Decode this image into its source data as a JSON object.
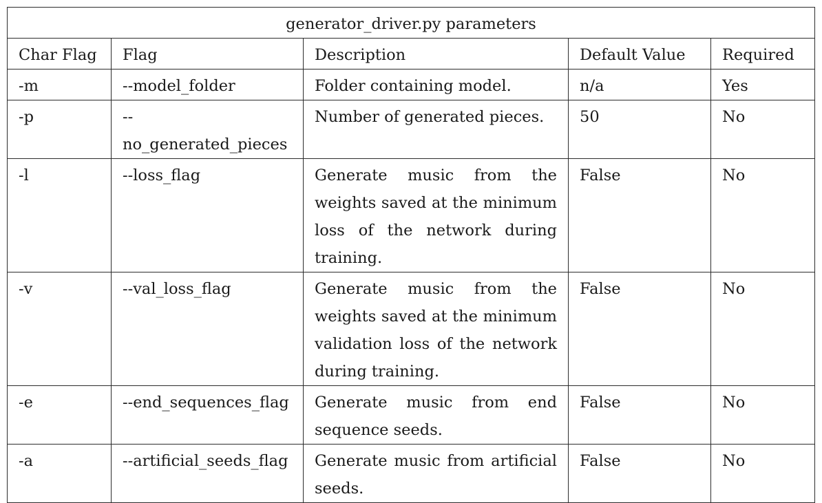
{
  "table": {
    "title": "generator_driver.py parameters",
    "headers": [
      "Char Flag",
      "Flag",
      "Description",
      "Default Value",
      "Required"
    ],
    "rows": [
      {
        "char": "-m",
        "flag": "--model_folder",
        "desc": "Folder containing model.",
        "default": "n/a",
        "required": "Yes"
      },
      {
        "char": "-p",
        "flag": "--no_generated_pieces",
        "desc": "Number of generated pieces.",
        "default": "50",
        "required": "No"
      },
      {
        "char": "-l",
        "flag": "--loss_flag",
        "desc": "Generate music from the weights saved at the minimum loss of the network during training.",
        "default": "False",
        "required": "No"
      },
      {
        "char": "-v",
        "flag": "--val_loss_flag",
        "desc": "Generate music from the weights saved at the minimum validation loss of the network during training.",
        "default": "False",
        "required": "No"
      },
      {
        "char": "-e",
        "flag": "--end_sequences_flag",
        "desc": "Generate music from end sequence seeds.",
        "default": "False",
        "required": "No"
      },
      {
        "char": "-a",
        "flag": "--artificial_seeds_flag",
        "desc": "Generate music from artificial seeds.",
        "default": "False",
        "required": "No"
      }
    ]
  }
}
